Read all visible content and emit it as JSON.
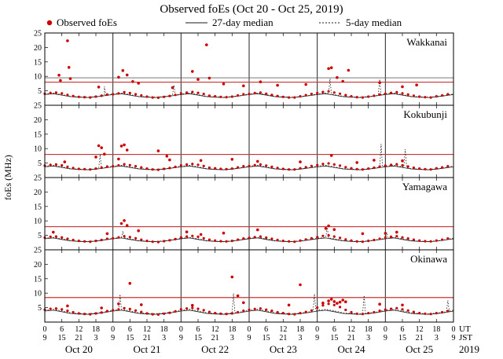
{
  "title": "Observed foEs (Oct 20 - Oct 25, 2019)",
  "legend": {
    "observed": "Observed foEs",
    "median27": "27-day median",
    "median5": "5-day median"
  },
  "axis": {
    "ylabel": "foEs (MHz)",
    "ut_label": "UT",
    "jst_label": "JST",
    "year": "2019",
    "y_ticks": [
      5,
      10,
      15,
      20,
      25
    ],
    "ut_tick_labels": [
      "0",
      "6",
      "12",
      "18"
    ],
    "jst_tick_labels": [
      "9",
      "15",
      "21",
      "3"
    ],
    "final_ut_label": "0",
    "final_jst_label": "9",
    "dates": [
      "Oct 20",
      "Oct 21",
      "Oct 22",
      "Oct 23",
      "Oct 24",
      "Oct 25"
    ]
  },
  "colors": {
    "observed": "#cc0000",
    "threshold": "#cc3333",
    "median": "#1a1a1a",
    "extra_line": "#666666",
    "frame": "#000000"
  },
  "chart_data": {
    "type": "scatter",
    "title": "Observed foEs (Oct 20 - Oct 25, 2019)",
    "x_unit": "hours UT from Oct 20 2019 00:00",
    "x_range_hours": [
      0,
      144
    ],
    "y_range_mhz": [
      0,
      25
    ],
    "x_step_hours_observed": 2,
    "median_step_hours": 3,
    "stations": [
      {
        "name": "Wakkanai",
        "threshold_mhz": 8,
        "extra_line_mhz": 9.5,
        "observed_base": [
          4.0,
          4.3,
          4.4,
          4.1,
          3.6,
          3.2,
          2.9,
          2.8,
          2.7,
          3.0,
          3.3,
          3.7,
          3.8,
          4.1,
          4.5,
          4.2,
          3.8,
          3.4,
          3.0,
          2.7,
          2.6,
          2.9,
          3.2,
          3.6,
          4.1,
          4.4,
          4.6,
          4.3,
          3.9,
          3.3,
          3.1,
          2.9,
          2.8,
          3.0,
          3.4,
          3.8,
          3.9,
          4.2,
          4.4,
          4.0,
          3.6,
          3.2,
          2.9,
          2.7,
          2.7,
          3.1,
          3.5,
          3.9,
          4.2,
          4.6,
          4.8,
          4.4,
          4.0,
          3.5,
          3.1,
          2.8,
          2.7,
          3.0,
          3.3,
          3.7,
          4.0,
          4.3,
          4.5,
          4.1,
          3.7,
          3.3,
          3.0,
          2.8,
          2.7,
          3.1,
          3.4,
          3.8
        ],
        "observed_spikes": [
          [
            5,
            10.4
          ],
          [
            5.5,
            8.6
          ],
          [
            8,
            22.3
          ],
          [
            8.5,
            13.1
          ],
          [
            9,
            9.2
          ],
          [
            19,
            6.3
          ],
          [
            26,
            9.7
          ],
          [
            27.5,
            12.0
          ],
          [
            29,
            10.5
          ],
          [
            31,
            8.2
          ],
          [
            33,
            7.6
          ],
          [
            45,
            6.1
          ],
          [
            52,
            11.7
          ],
          [
            54,
            8.9
          ],
          [
            57,
            20.9
          ],
          [
            58,
            9.4
          ],
          [
            63,
            7.4
          ],
          [
            70,
            6.7
          ],
          [
            76,
            8.1
          ],
          [
            82,
            6.9
          ],
          [
            92,
            7.2
          ],
          [
            100,
            12.7
          ],
          [
            101,
            13.0
          ],
          [
            103,
            9.6
          ],
          [
            105,
            8.3
          ],
          [
            107,
            12.1
          ],
          [
            118,
            7.8
          ],
          [
            126,
            6.4
          ],
          [
            131,
            7.0
          ]
        ],
        "median27_daily": [
          3.7,
          4.0,
          3.5,
          3.0,
          2.8,
          2.7,
          2.9,
          3.3
        ],
        "median5_daily": [
          3.9,
          4.2,
          3.7,
          3.1,
          2.9,
          2.8,
          3.0,
          3.4
        ],
        "median5_spikes": [
          [
            21,
            6.5
          ],
          [
            45.5,
            7.0
          ],
          [
            100.5,
            9.2
          ],
          [
            118,
            9.0
          ]
        ]
      },
      {
        "name": "Kokubunji",
        "threshold_mhz": 8,
        "observed_base": [
          4.1,
          4.4,
          4.5,
          4.2,
          3.7,
          3.3,
          3.0,
          2.9,
          2.8,
          3.1,
          3.4,
          3.8,
          3.9,
          4.2,
          4.6,
          4.3,
          3.9,
          3.5,
          3.1,
          2.8,
          2.7,
          3.0,
          3.3,
          3.7,
          4.2,
          4.5,
          4.7,
          4.4,
          4.0,
          3.4,
          3.2,
          3.0,
          2.9,
          3.1,
          3.5,
          3.9,
          4.0,
          4.3,
          4.5,
          4.1,
          3.7,
          3.3,
          3.0,
          2.8,
          2.8,
          3.2,
          3.6,
          4.0,
          4.3,
          4.7,
          4.9,
          4.5,
          4.1,
          3.6,
          3.2,
          2.9,
          2.8,
          3.1,
          3.4,
          3.8,
          4.1,
          4.4,
          4.6,
          4.2,
          3.8,
          3.4,
          3.1,
          2.9,
          2.8,
          3.2,
          3.5,
          3.9
        ],
        "observed_spikes": [
          [
            7,
            5.4
          ],
          [
            18,
            7.1
          ],
          [
            19,
            11.0
          ],
          [
            20,
            10.3
          ],
          [
            21,
            8.1
          ],
          [
            26,
            6.4
          ],
          [
            27,
            10.9
          ],
          [
            28,
            11.3
          ],
          [
            29,
            9.5
          ],
          [
            40,
            9.2
          ],
          [
            43,
            7.4
          ],
          [
            44,
            6.1
          ],
          [
            55,
            5.9
          ],
          [
            66,
            6.3
          ],
          [
            75,
            5.6
          ],
          [
            90,
            5.4
          ],
          [
            101,
            7.6
          ],
          [
            110,
            5.2
          ],
          [
            116,
            6.0
          ],
          [
            126,
            5.8
          ]
        ],
        "median27_daily": [
          3.7,
          4.0,
          3.5,
          3.0,
          2.8,
          2.7,
          2.9,
          3.3
        ],
        "median5_daily": [
          3.9,
          4.2,
          3.7,
          3.1,
          2.9,
          2.8,
          3.0,
          3.4
        ],
        "median5_spikes": [
          [
            19.5,
            8.0
          ],
          [
            118.5,
            11.6
          ],
          [
            127,
            9.8
          ]
        ]
      },
      {
        "name": "Yamagawa",
        "threshold_mhz": 8,
        "observed_base": [
          4.2,
          4.5,
          4.6,
          4.3,
          3.8,
          3.4,
          3.1,
          2.9,
          2.8,
          3.1,
          3.4,
          3.8,
          4.0,
          4.3,
          4.7,
          4.4,
          4.0,
          3.5,
          3.1,
          2.8,
          2.7,
          3.0,
          3.3,
          3.7,
          4.3,
          4.6,
          4.8,
          4.5,
          4.0,
          3.5,
          3.2,
          3.0,
          2.9,
          3.1,
          3.5,
          3.9,
          4.1,
          4.4,
          4.6,
          4.2,
          3.8,
          3.4,
          3.1,
          2.9,
          2.8,
          3.2,
          3.6,
          4.0,
          4.4,
          4.8,
          5.0,
          4.6,
          4.1,
          3.6,
          3.2,
          2.9,
          2.8,
          3.1,
          3.4,
          3.8,
          4.2,
          4.5,
          4.7,
          4.3,
          3.9,
          3.5,
          3.2,
          3.0,
          2.9,
          3.2,
          3.5,
          3.9
        ],
        "observed_spikes": [
          [
            3,
            6.1
          ],
          [
            22,
            5.6
          ],
          [
            27,
            9.1
          ],
          [
            28,
            10.1
          ],
          [
            29,
            8.4
          ],
          [
            33,
            6.6
          ],
          [
            50,
            6.2
          ],
          [
            55,
            5.3
          ],
          [
            63,
            5.8
          ],
          [
            75,
            6.9
          ],
          [
            99,
            7.4
          ],
          [
            100,
            8.3
          ],
          [
            102,
            7.0
          ],
          [
            112,
            5.6
          ],
          [
            120,
            5.7
          ],
          [
            124,
            6.1
          ]
        ],
        "median27_daily": [
          3.8,
          4.1,
          3.6,
          3.1,
          2.9,
          2.8,
          3.0,
          3.4
        ],
        "median5_daily": [
          4.0,
          4.3,
          3.8,
          3.2,
          3.0,
          2.9,
          3.1,
          3.5
        ],
        "median5_spikes": [
          [
            27.5,
            6.5
          ],
          [
            99.5,
            7.8
          ],
          [
            120.5,
            6.0
          ]
        ]
      },
      {
        "name": "Okinawa",
        "threshold_mhz": 8.5,
        "observed_base": [
          4.3,
          4.6,
          4.7,
          4.4,
          3.9,
          3.4,
          3.0,
          2.8,
          2.7,
          3.0,
          3.3,
          3.8,
          4.1,
          4.4,
          4.8,
          4.5,
          4.0,
          3.5,
          3.0,
          2.7,
          2.6,
          2.9,
          3.2,
          3.7,
          4.4,
          4.7,
          4.9,
          4.6,
          4.1,
          3.5,
          3.1,
          2.9,
          2.8,
          3.0,
          3.4,
          3.9,
          4.2,
          4.5,
          4.7,
          4.3,
          3.9,
          3.4,
          3.1,
          2.8,
          2.7,
          3.1,
          3.5,
          4.0,
          5.0,
          5.8,
          6.3,
          5.9,
          5.2,
          4.2,
          3.4,
          2.9,
          2.8,
          3.1,
          3.4,
          3.9,
          4.3,
          4.6,
          4.8,
          4.4,
          4.0,
          3.5,
          3.1,
          2.9,
          2.8,
          3.1,
          3.4,
          3.8
        ],
        "observed_spikes": [
          [
            8,
            5.6
          ],
          [
            20,
            4.9
          ],
          [
            26,
            6.3
          ],
          [
            30,
            13.4
          ],
          [
            34,
            6.0
          ],
          [
            52,
            5.8
          ],
          [
            66,
            15.6
          ],
          [
            68,
            9.1
          ],
          [
            70,
            6.7
          ],
          [
            86,
            5.9
          ],
          [
            90,
            12.9
          ],
          [
            98,
            6.6
          ],
          [
            100,
            7.3
          ],
          [
            101,
            7.9
          ],
          [
            102,
            7.1
          ],
          [
            103,
            6.5
          ],
          [
            104,
            6.9
          ],
          [
            105,
            7.6
          ],
          [
            106,
            7.0
          ],
          [
            118,
            6.2
          ],
          [
            126,
            5.9
          ]
        ],
        "median27_daily": [
          3.8,
          4.1,
          3.6,
          3.0,
          2.8,
          2.7,
          2.9,
          3.3
        ],
        "median5_daily": [
          4.1,
          4.4,
          3.9,
          3.2,
          3.0,
          2.9,
          3.1,
          3.5
        ],
        "median5_spikes": [
          [
            26.5,
            9.6
          ],
          [
            66.5,
            9.9
          ],
          [
            95,
            9.7
          ],
          [
            112.5,
            9.2
          ],
          [
            142,
            7.5
          ]
        ]
      }
    ]
  }
}
